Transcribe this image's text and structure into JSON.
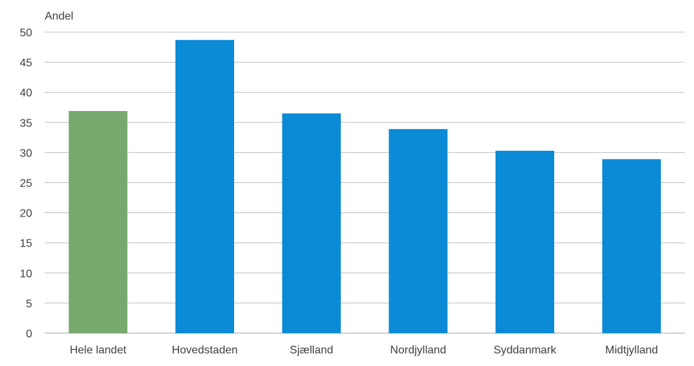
{
  "chart_data": {
    "type": "bar",
    "ylabel": "Andel",
    "categories": [
      "Hele landet",
      "Hovedstaden",
      "Sjælland",
      "Nordjylland",
      "Syddanmark",
      "Midtjylland"
    ],
    "values": [
      36.9,
      48.7,
      36.5,
      33.9,
      30.3,
      28.9
    ],
    "bar_colors": [
      "#77a96d",
      "#0b8ad6",
      "#0b8ad6",
      "#0b8ad6",
      "#0b8ad6",
      "#0b8ad6"
    ],
    "ylim": [
      0,
      50
    ],
    "yticks": [
      "0",
      "5",
      "10",
      "15",
      "20",
      "25",
      "30",
      "35",
      "40",
      "45",
      "50"
    ],
    "grid": true,
    "legend": "none"
  }
}
